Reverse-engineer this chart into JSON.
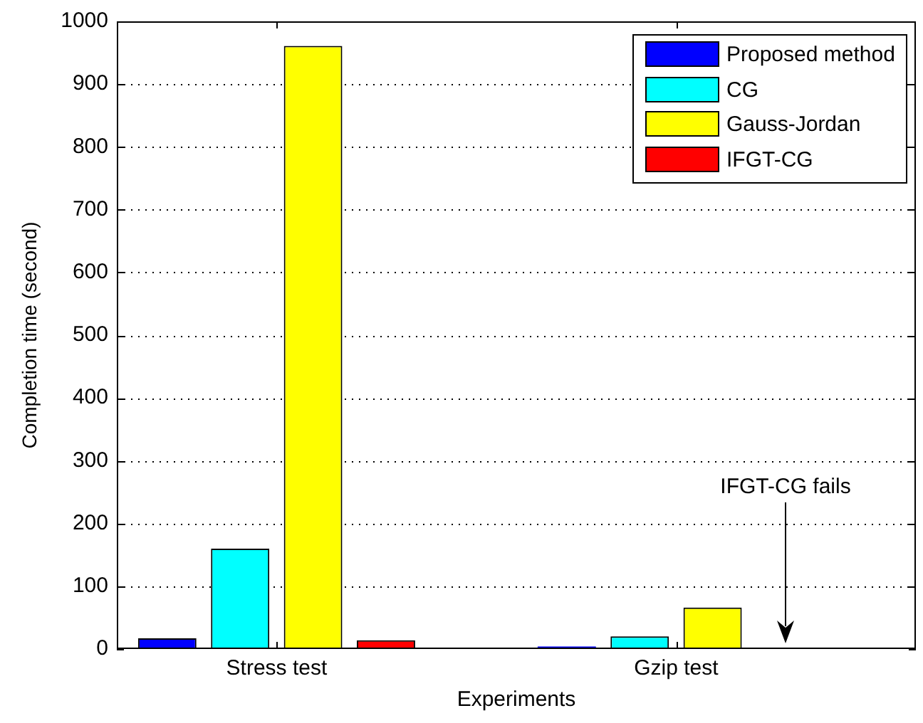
{
  "chart_data": {
    "type": "bar",
    "xlabel": "Experiments",
    "ylabel": "Completion time (second)",
    "categories": [
      "Stress test",
      "Gzip test"
    ],
    "series": [
      {
        "name": "Proposed method",
        "color": "#0000ff",
        "values": [
          17,
          4
        ]
      },
      {
        "name": "CG",
        "color": "#00ffff",
        "values": [
          160,
          20
        ]
      },
      {
        "name": "Gauss-Jordan",
        "color": "#ffff00",
        "values": [
          961,
          66
        ]
      },
      {
        "name": "IFGT-CG",
        "color": "#ff0000",
        "values": [
          14,
          null
        ]
      }
    ],
    "ylim": [
      0,
      1000
    ],
    "yticks": [
      0,
      100,
      200,
      300,
      400,
      500,
      600,
      700,
      800,
      900,
      1000
    ],
    "grid": "y",
    "legend": "top right",
    "annotations": [
      "IFGT-CG fails"
    ]
  }
}
